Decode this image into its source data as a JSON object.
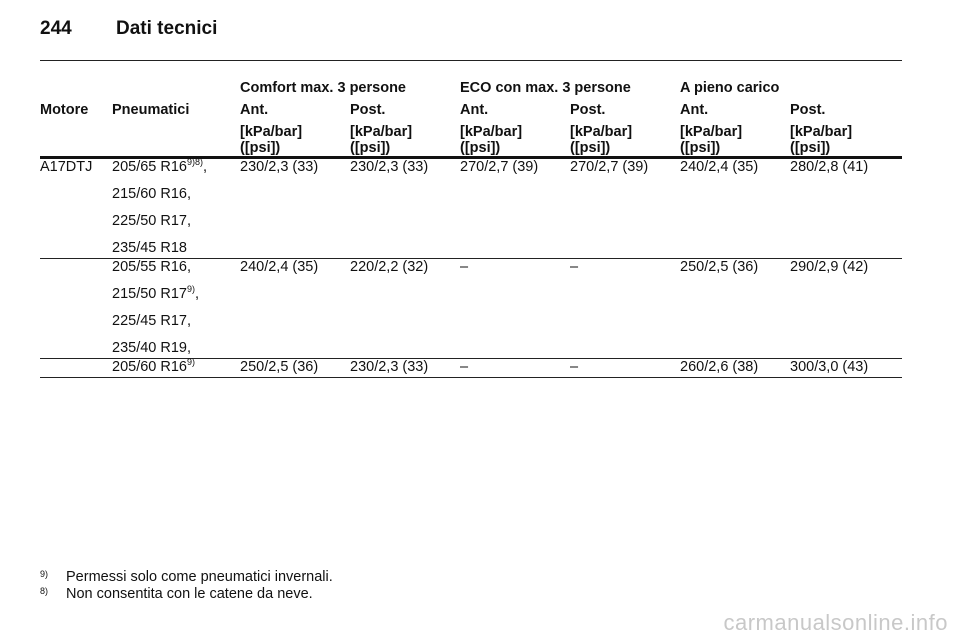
{
  "header": {
    "page_number": "244",
    "title": "Dati tecnici"
  },
  "table": {
    "group_headers": [
      "Comfort max. 3 persone",
      "ECO con max. 3 persone",
      "A pieno carico"
    ],
    "col_motore": "Motore",
    "col_pneumatici": "Pneumatici",
    "axle_labels": [
      "Ant.",
      "Post.",
      "Ant.",
      "Post.",
      "Ant.",
      "Post."
    ],
    "unit_line1": "[kPa/bar]",
    "unit_line2": "([psi])",
    "rows": [
      {
        "motore": "A17DTJ",
        "tyres": [
          {
            "text": "205/65 R16",
            "sup": "9)8)",
            "suffix": ","
          },
          {
            "text": "215/60 R16,",
            "sup": "",
            "suffix": ""
          },
          {
            "text": "225/50 R17,",
            "sup": "",
            "suffix": ""
          },
          {
            "text": "235/45 R18",
            "sup": "",
            "suffix": ""
          }
        ],
        "values": [
          "230/2,3 (33)",
          "230/2,3 (33)",
          "270/2,7 (39)",
          "270/2,7 (39)",
          "240/2,4 (35)",
          "280/2,8 (41)"
        ]
      },
      {
        "motore": "",
        "tyres": [
          {
            "text": "205/55 R16,",
            "sup": "",
            "suffix": ""
          },
          {
            "text": "215/50 R17",
            "sup": "9)",
            "suffix": ","
          },
          {
            "text": "225/45 R17,",
            "sup": "",
            "suffix": ""
          },
          {
            "text": "235/40 R19,",
            "sup": "",
            "suffix": ""
          }
        ],
        "values": [
          "240/2,4 (35)",
          "220/2,2 (32)",
          "–",
          "–",
          "250/2,5 (36)",
          "290/2,9 (42)"
        ]
      },
      {
        "motore": "",
        "tyres": [
          {
            "text": "205/60 R16",
            "sup": "9)",
            "suffix": ""
          }
        ],
        "values": [
          "250/2,5 (36)",
          "230/2,3 (33)",
          "–",
          "–",
          "260/2,6 (38)",
          "300/3,0 (43)"
        ]
      }
    ]
  },
  "footnotes": [
    {
      "mark": "9)",
      "text": "Permessi solo come pneumatici invernali."
    },
    {
      "mark": "8)",
      "text": "Non consentita con le catene da neve."
    }
  ],
  "watermark": "carmanualsonline.info"
}
